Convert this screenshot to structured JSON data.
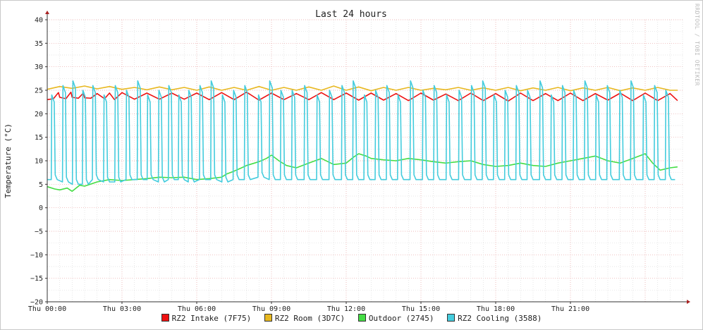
{
  "chart_data": {
    "type": "line",
    "title": "Last 24 hours",
    "ylabel": "Temperature (°C)",
    "xlabel": "",
    "watermark": "RRDTOOL / TOBI OETIKER",
    "ylim": [
      -20,
      40
    ],
    "yticks": [
      40,
      35,
      30,
      25,
      20,
      15,
      10,
      5,
      0,
      -5,
      -10,
      -15,
      -20
    ],
    "xlim_hours": [
      0,
      25.5
    ],
    "xticks": [
      {
        "h": 0,
        "label": "Thu 00:00"
      },
      {
        "h": 3,
        "label": "Thu 03:00"
      },
      {
        "h": 6,
        "label": "Thu 06:00"
      },
      {
        "h": 9,
        "label": "Thu 09:00"
      },
      {
        "h": 12,
        "label": "Thu 12:00"
      },
      {
        "h": 15,
        "label": "Thu 15:00"
      },
      {
        "h": 18,
        "label": "Thu 18:00"
      },
      {
        "h": 21,
        "label": "Thu 21:00"
      }
    ],
    "grid": true,
    "legend_position": "bottom",
    "series": [
      {
        "name": "RZ2 Intake (7F75)",
        "color": "#ee1111",
        "x": [
          0,
          0.25,
          0.45,
          0.5,
          0.75,
          0.95,
          1.0,
          1.25,
          1.45,
          1.5,
          1.75,
          2.0,
          2.3,
          2.5,
          2.7,
          3.0,
          3.5,
          4.0,
          4.5,
          5.0,
          5.5,
          6.0,
          6.5,
          7.0,
          7.5,
          8.0,
          8.5,
          9.0,
          9.5,
          10.0,
          10.5,
          11.0,
          11.5,
          12.0,
          12.5,
          13.0,
          13.5,
          14.0,
          14.5,
          15.0,
          15.5,
          16.0,
          16.5,
          17.0,
          17.5,
          18.0,
          18.5,
          19.0,
          19.5,
          20.0,
          20.5,
          21.0,
          21.5,
          22.0,
          22.5,
          23.0,
          23.5,
          24.0,
          24.5,
          25.0,
          25.3
        ],
        "y": [
          23,
          23.2,
          24.5,
          23.5,
          23.2,
          24.6,
          23.5,
          23.3,
          24.4,
          23.4,
          23.3,
          24.3,
          23.2,
          24.4,
          23.0,
          24.5,
          23.1,
          24.4,
          23.1,
          24.4,
          23.1,
          24.4,
          23.0,
          24.5,
          23.0,
          24.6,
          22.9,
          24.4,
          23.0,
          24.3,
          23.0,
          24.5,
          23.0,
          24.4,
          22.9,
          24.4,
          22.9,
          24.3,
          22.8,
          24.4,
          22.9,
          24.2,
          22.8,
          24.4,
          22.8,
          24.3,
          22.7,
          24.4,
          22.8,
          24.3,
          22.8,
          24.4,
          22.8,
          24.3,
          22.9,
          24.4,
          22.8,
          24.4,
          22.8,
          24.3,
          22.8
        ]
      },
      {
        "name": "RZ2 Room (3D7C)",
        "color": "#e8b820",
        "x": [
          0,
          0.5,
          1.0,
          1.5,
          2.0,
          2.5,
          3.0,
          3.5,
          4.0,
          4.5,
          5.0,
          5.5,
          6.0,
          6.5,
          7.0,
          7.5,
          8.0,
          8.5,
          9.0,
          9.5,
          10.0,
          10.5,
          11.0,
          11.5,
          12.0,
          12.5,
          13.0,
          13.5,
          14.0,
          14.5,
          15.0,
          15.5,
          16.0,
          16.5,
          17.0,
          17.5,
          18.0,
          18.5,
          19.0,
          19.5,
          20.0,
          20.5,
          21.0,
          21.5,
          22.0,
          22.5,
          23.0,
          23.5,
          24.0,
          24.5,
          25.0,
          25.3
        ],
        "y": [
          25.2,
          25.8,
          25.4,
          25.9,
          25.3,
          25.8,
          25.2,
          25.6,
          25.1,
          25.7,
          25.1,
          25.6,
          25.0,
          25.7,
          25.0,
          25.6,
          25.0,
          25.8,
          25.0,
          25.6,
          25.0,
          25.7,
          25.0,
          25.9,
          25.0,
          25.7,
          24.9,
          25.6,
          25.0,
          25.6,
          25.0,
          25.4,
          25.1,
          25.6,
          25.0,
          25.5,
          25.0,
          25.6,
          24.9,
          25.5,
          25.0,
          25.6,
          24.9,
          25.5,
          25.0,
          25.6,
          24.9,
          25.5,
          25.0,
          25.6,
          25.0,
          25.0
        ]
      },
      {
        "name": "Outdoor (2745)",
        "color": "#44dd44",
        "x": [
          0,
          0.3,
          0.5,
          0.8,
          1.0,
          1.3,
          1.5,
          2.0,
          2.5,
          3.0,
          3.5,
          4.0,
          4.5,
          5.0,
          5.5,
          6.0,
          6.5,
          7.0,
          7.2,
          7.5,
          7.8,
          8.0,
          8.5,
          8.8,
          9.0,
          9.3,
          9.6,
          10.0,
          10.5,
          11.0,
          11.5,
          12.0,
          12.3,
          12.5,
          12.8,
          13.0,
          13.5,
          14.0,
          14.5,
          15.0,
          15.5,
          16.0,
          16.5,
          17.0,
          17.5,
          18.0,
          18.5,
          19.0,
          19.5,
          20.0,
          20.5,
          21.0,
          21.5,
          22.0,
          22.5,
          23.0,
          23.5,
          24.0,
          24.3,
          24.6,
          25.0,
          25.3
        ],
        "y": [
          4.5,
          4.0,
          3.8,
          4.2,
          3.5,
          4.8,
          4.6,
          5.5,
          6.0,
          5.8,
          6.0,
          6.2,
          6.5,
          6.4,
          6.5,
          6.0,
          6.2,
          6.5,
          7.2,
          7.8,
          8.5,
          9.0,
          9.8,
          10.5,
          11.2,
          10.0,
          9.0,
          8.5,
          9.5,
          10.5,
          9.2,
          9.5,
          10.8,
          11.5,
          11.0,
          10.5,
          10.2,
          10.0,
          10.5,
          10.2,
          9.8,
          9.5,
          9.8,
          10.0,
          9.2,
          8.8,
          9.0,
          9.5,
          9.0,
          8.8,
          9.5,
          10.0,
          10.5,
          11.0,
          10.0,
          9.5,
          10.5,
          11.5,
          9.5,
          8.0,
          8.5,
          8.7
        ]
      },
      {
        "name": "RZ2 Cooling (3588)",
        "color": "#44ccdd",
        "cycle": {
          "peak": 26,
          "base": 6
        },
        "peaks_h": [
          0.2,
          0.65,
          1.05,
          1.45,
          1.85,
          2.3,
          2.75,
          3.2,
          3.65,
          4.05,
          4.5,
          4.9,
          5.3,
          5.7,
          6.15,
          6.6,
          7.05,
          7.5,
          7.95,
          8.5,
          8.95,
          9.4,
          9.85,
          10.35,
          10.85,
          11.35,
          11.85,
          12.3,
          12.75,
          13.2,
          13.65,
          14.1,
          14.6,
          15.1,
          15.55,
          16.05,
          16.55,
          17.05,
          17.5,
          17.95,
          18.4,
          18.85,
          19.3,
          19.8,
          20.25,
          20.7,
          21.15,
          21.6,
          22.05,
          22.5,
          23.0,
          23.45,
          23.95,
          24.4,
          24.85
        ],
        "peak_values": [
          24,
          26,
          27,
          25,
          26,
          24,
          26,
          25,
          27,
          24,
          25,
          26,
          24,
          25,
          26,
          27,
          24,
          25,
          26,
          24,
          27,
          25,
          25,
          26,
          24,
          25,
          26,
          27,
          24,
          25,
          26,
          24,
          27,
          25,
          26,
          24,
          25,
          26,
          27,
          24,
          25,
          26,
          25,
          27,
          24,
          26,
          25,
          27,
          24,
          26,
          25,
          27,
          24,
          26,
          25
        ],
        "base_values": [
          6,
          5.5,
          5,
          5,
          6,
          5.5,
          5.5,
          6,
          6,
          6,
          5.5,
          6,
          6,
          5.5,
          6,
          6,
          5.5,
          6,
          6,
          6.5,
          6,
          6,
          6,
          6,
          6,
          6,
          6,
          6,
          6,
          6,
          6,
          6,
          6,
          6,
          6,
          6,
          6,
          6,
          6,
          6,
          6,
          6,
          6,
          6,
          6,
          6,
          6,
          6,
          6,
          6,
          6,
          6,
          6,
          6,
          6
        ]
      }
    ]
  },
  "legend": [
    {
      "label": "RZ2 Intake (7F75)",
      "color": "#ee1111"
    },
    {
      "label": "RZ2 Room (3D7C)",
      "color": "#e8b820"
    },
    {
      "label": "Outdoor (2745)",
      "color": "#44dd44"
    },
    {
      "label": "RZ2 Cooling (3588)",
      "color": "#44ccdd"
    }
  ]
}
